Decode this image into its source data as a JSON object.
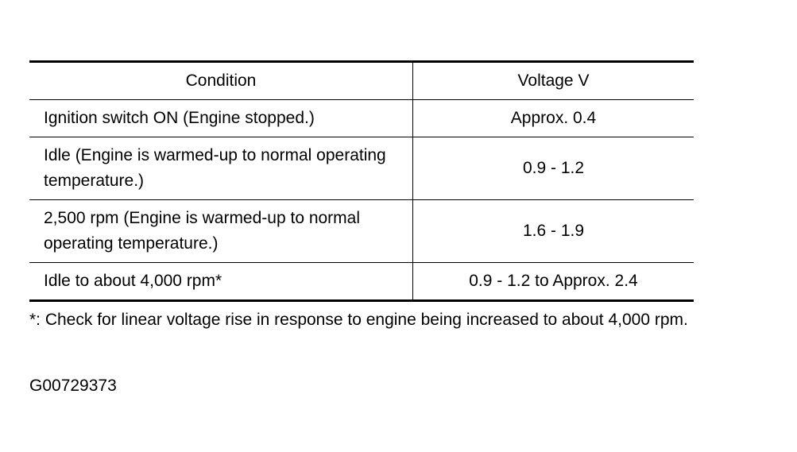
{
  "table": {
    "headers": [
      "Condition",
      "Voltage V"
    ],
    "rows": [
      [
        "Ignition switch ON (Engine stopped.)",
        "Approx. 0.4"
      ],
      [
        "Idle (Engine is warmed-up to normal operating temperature.)",
        "0.9 - 1.2"
      ],
      [
        "2,500 rpm (Engine is warmed-up to normal operating temperature.)",
        "1.6 - 1.9"
      ],
      [
        "Idle to about 4,000 rpm*",
        "0.9 - 1.2 to Approx. 2.4"
      ]
    ]
  },
  "note": "*: Check for linear voltage rise in response to engine being increased to about 4,000 rpm.",
  "figure_id": "G00729373"
}
